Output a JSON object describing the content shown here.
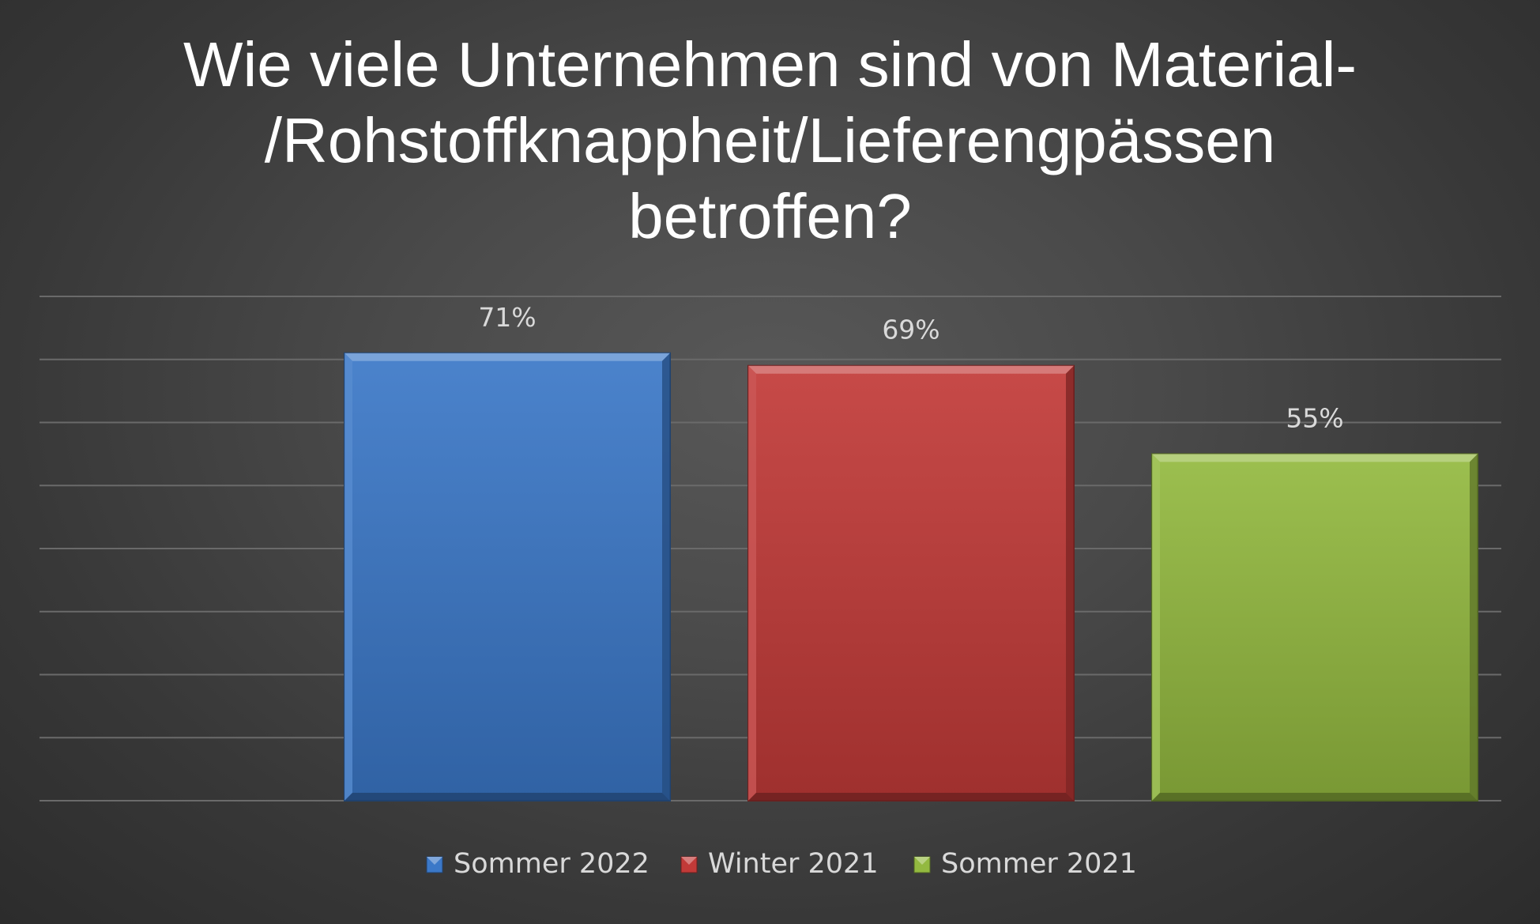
{
  "chart_data": {
    "type": "bar",
    "title": "Wie viele Unternehmen sind von Material-\n/Rohstoffknappheit/Lieferengpässen\nbetroffen?",
    "title_lines": [
      "Wie viele Unternehmen sind von Material-",
      "/Rohstoffknappheit/Lieferengpässen",
      "betroffen?"
    ],
    "series": [
      {
        "name": "Sommer 2022",
        "value": 71,
        "label": "71%",
        "color": "#3b78c8"
      },
      {
        "name": "Winter 2021",
        "value": 69,
        "label": "69%",
        "color": "#c23a38"
      },
      {
        "name": "Sommer 2021",
        "value": 55,
        "label": "55%",
        "color": "#93b940"
      }
    ],
    "ylim": [
      0,
      80
    ],
    "grid": true,
    "legend_position": "bottom",
    "xlabel": "",
    "ylabel": ""
  }
}
